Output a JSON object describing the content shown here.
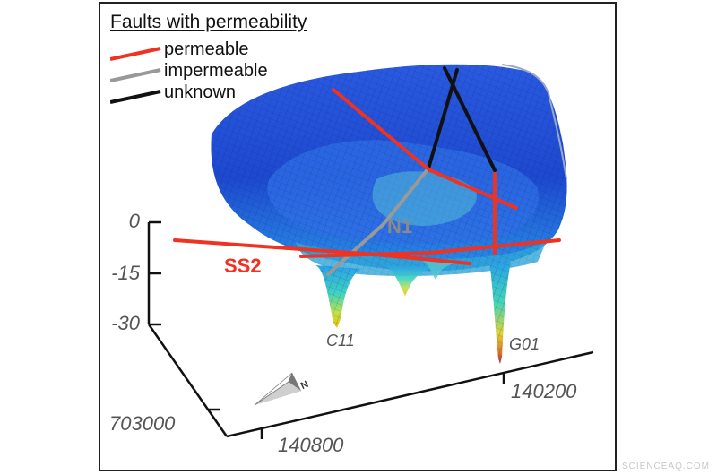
{
  "legend": {
    "title": "Faults with permeability",
    "items": [
      {
        "label": "permeable",
        "color": "#ee3322"
      },
      {
        "label": "impermeable",
        "color": "#999999"
      },
      {
        "label": "unknown",
        "color": "#111111"
      }
    ]
  },
  "depth_ticks": [
    "0",
    "-15",
    "-30"
  ],
  "horizontal_ticks": [
    "703000",
    "140800",
    "140200"
  ],
  "fault_labels": {
    "ss2": "SS2",
    "n1": "N1"
  },
  "well_labels": {
    "c11": "C11",
    "g01": "G01"
  },
  "compass_letter": "N",
  "watermark": "SCIENCEAQ.COM",
  "colors": {
    "permeable": "#ee3322",
    "impermeable": "#999999",
    "unknown": "#111111",
    "surface_top": "#1b4fd6",
    "surface_deep": "#1fa0e0"
  }
}
